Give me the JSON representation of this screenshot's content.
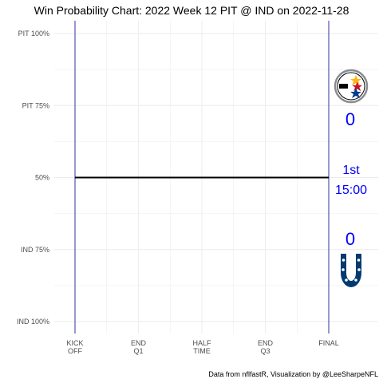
{
  "chart_data": {
    "type": "line",
    "title": "Win Probability Chart: 2022 Week 12 PIT @ IND on 2022-11-28",
    "y_ticks": [
      {
        "value": 100,
        "label": "PIT 100%"
      },
      {
        "value": 75,
        "label": "PIT 75%"
      },
      {
        "value": 50,
        "label": "50%"
      },
      {
        "value": 25,
        "label": "IND 75%"
      },
      {
        "value": 0,
        "label": "IND 100%"
      }
    ],
    "x_ticks": [
      {
        "value": 0,
        "lines": [
          "KICK",
          "OFF"
        ]
      },
      {
        "value": 15,
        "lines": [
          "END",
          "Q1"
        ]
      },
      {
        "value": 30,
        "lines": [
          "HALF",
          "TIME"
        ]
      },
      {
        "value": 45,
        "lines": [
          "END",
          "Q3"
        ]
      },
      {
        "value": 60,
        "lines": [
          "FINAL"
        ]
      }
    ],
    "xlim": [
      0,
      60
    ],
    "ylim": [
      0,
      100
    ],
    "series": [
      {
        "x": [
          0,
          60
        ],
        "y": [
          50,
          50
        ]
      }
    ],
    "vlines": [
      0,
      60
    ],
    "grid": true
  },
  "scoreboard": {
    "away_score": "0",
    "home_score": "0",
    "quarter": "1st",
    "clock": "15:00",
    "away_team_icon": "steelers-logo",
    "home_team_icon": "colts-horseshoe-logo"
  },
  "caption": "Data from nflfastR, Visualization by @LeeSharpeNFL",
  "colors": {
    "line": "#000000",
    "vline": "#00008b",
    "text_accent": "#0000ff",
    "grid": "#ebebeb",
    "colts_blue": "#003a70",
    "steelers_gold": "#ffb612",
    "steelers_red": "#c8102e",
    "steelers_blue": "#003c8f"
  }
}
